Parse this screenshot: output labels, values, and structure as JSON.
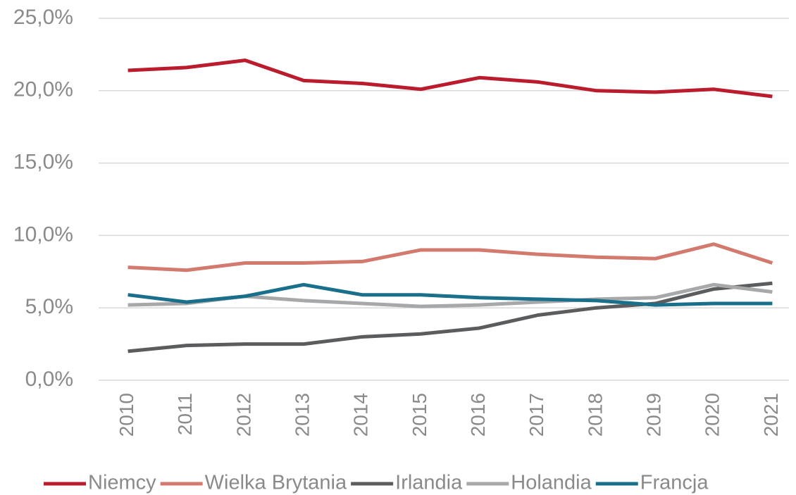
{
  "chart_data": {
    "type": "line",
    "categories": [
      "2010",
      "2011",
      "2012",
      "2013",
      "2014",
      "2015",
      "2016",
      "2017",
      "2018",
      "2019",
      "2020",
      "2021"
    ],
    "series": [
      {
        "name": "Niemcy",
        "color": "#ba1c2e",
        "values": [
          21.4,
          21.6,
          22.1,
          20.7,
          20.5,
          20.1,
          20.9,
          20.6,
          20.0,
          19.9,
          20.1,
          19.6
        ]
      },
      {
        "name": "Wielka Brytania",
        "color": "#d27a6e",
        "values": [
          7.8,
          7.6,
          8.1,
          8.1,
          8.2,
          9.0,
          9.0,
          8.7,
          8.5,
          8.4,
          9.4,
          8.1
        ]
      },
      {
        "name": "Irlandia",
        "color": "#5a5c5e",
        "values": [
          2.0,
          2.4,
          2.5,
          2.5,
          3.0,
          3.2,
          3.6,
          4.5,
          5.0,
          5.3,
          6.3,
          6.7
        ]
      },
      {
        "name": "Holandia",
        "color": "#a6a8aa",
        "values": [
          5.2,
          5.3,
          5.8,
          5.5,
          5.3,
          5.1,
          5.2,
          5.4,
          5.6,
          5.7,
          6.6,
          6.1
        ]
      },
      {
        "name": "Francja",
        "color": "#1a6f8a",
        "values": [
          5.9,
          5.4,
          5.8,
          6.6,
          5.9,
          5.9,
          5.7,
          5.6,
          5.5,
          5.2,
          5.3,
          5.3
        ]
      }
    ],
    "ylim": [
      0,
      25
    ],
    "yticks": [
      {
        "value": 0,
        "label": "0,0%"
      },
      {
        "value": 5,
        "label": "5,0%"
      },
      {
        "value": 10,
        "label": "10,0%"
      },
      {
        "value": 15,
        "label": "15,0%"
      },
      {
        "value": 20,
        "label": "20,0%"
      },
      {
        "value": 25,
        "label": "25,0%"
      }
    ],
    "grid": true,
    "legend": "bottom"
  }
}
